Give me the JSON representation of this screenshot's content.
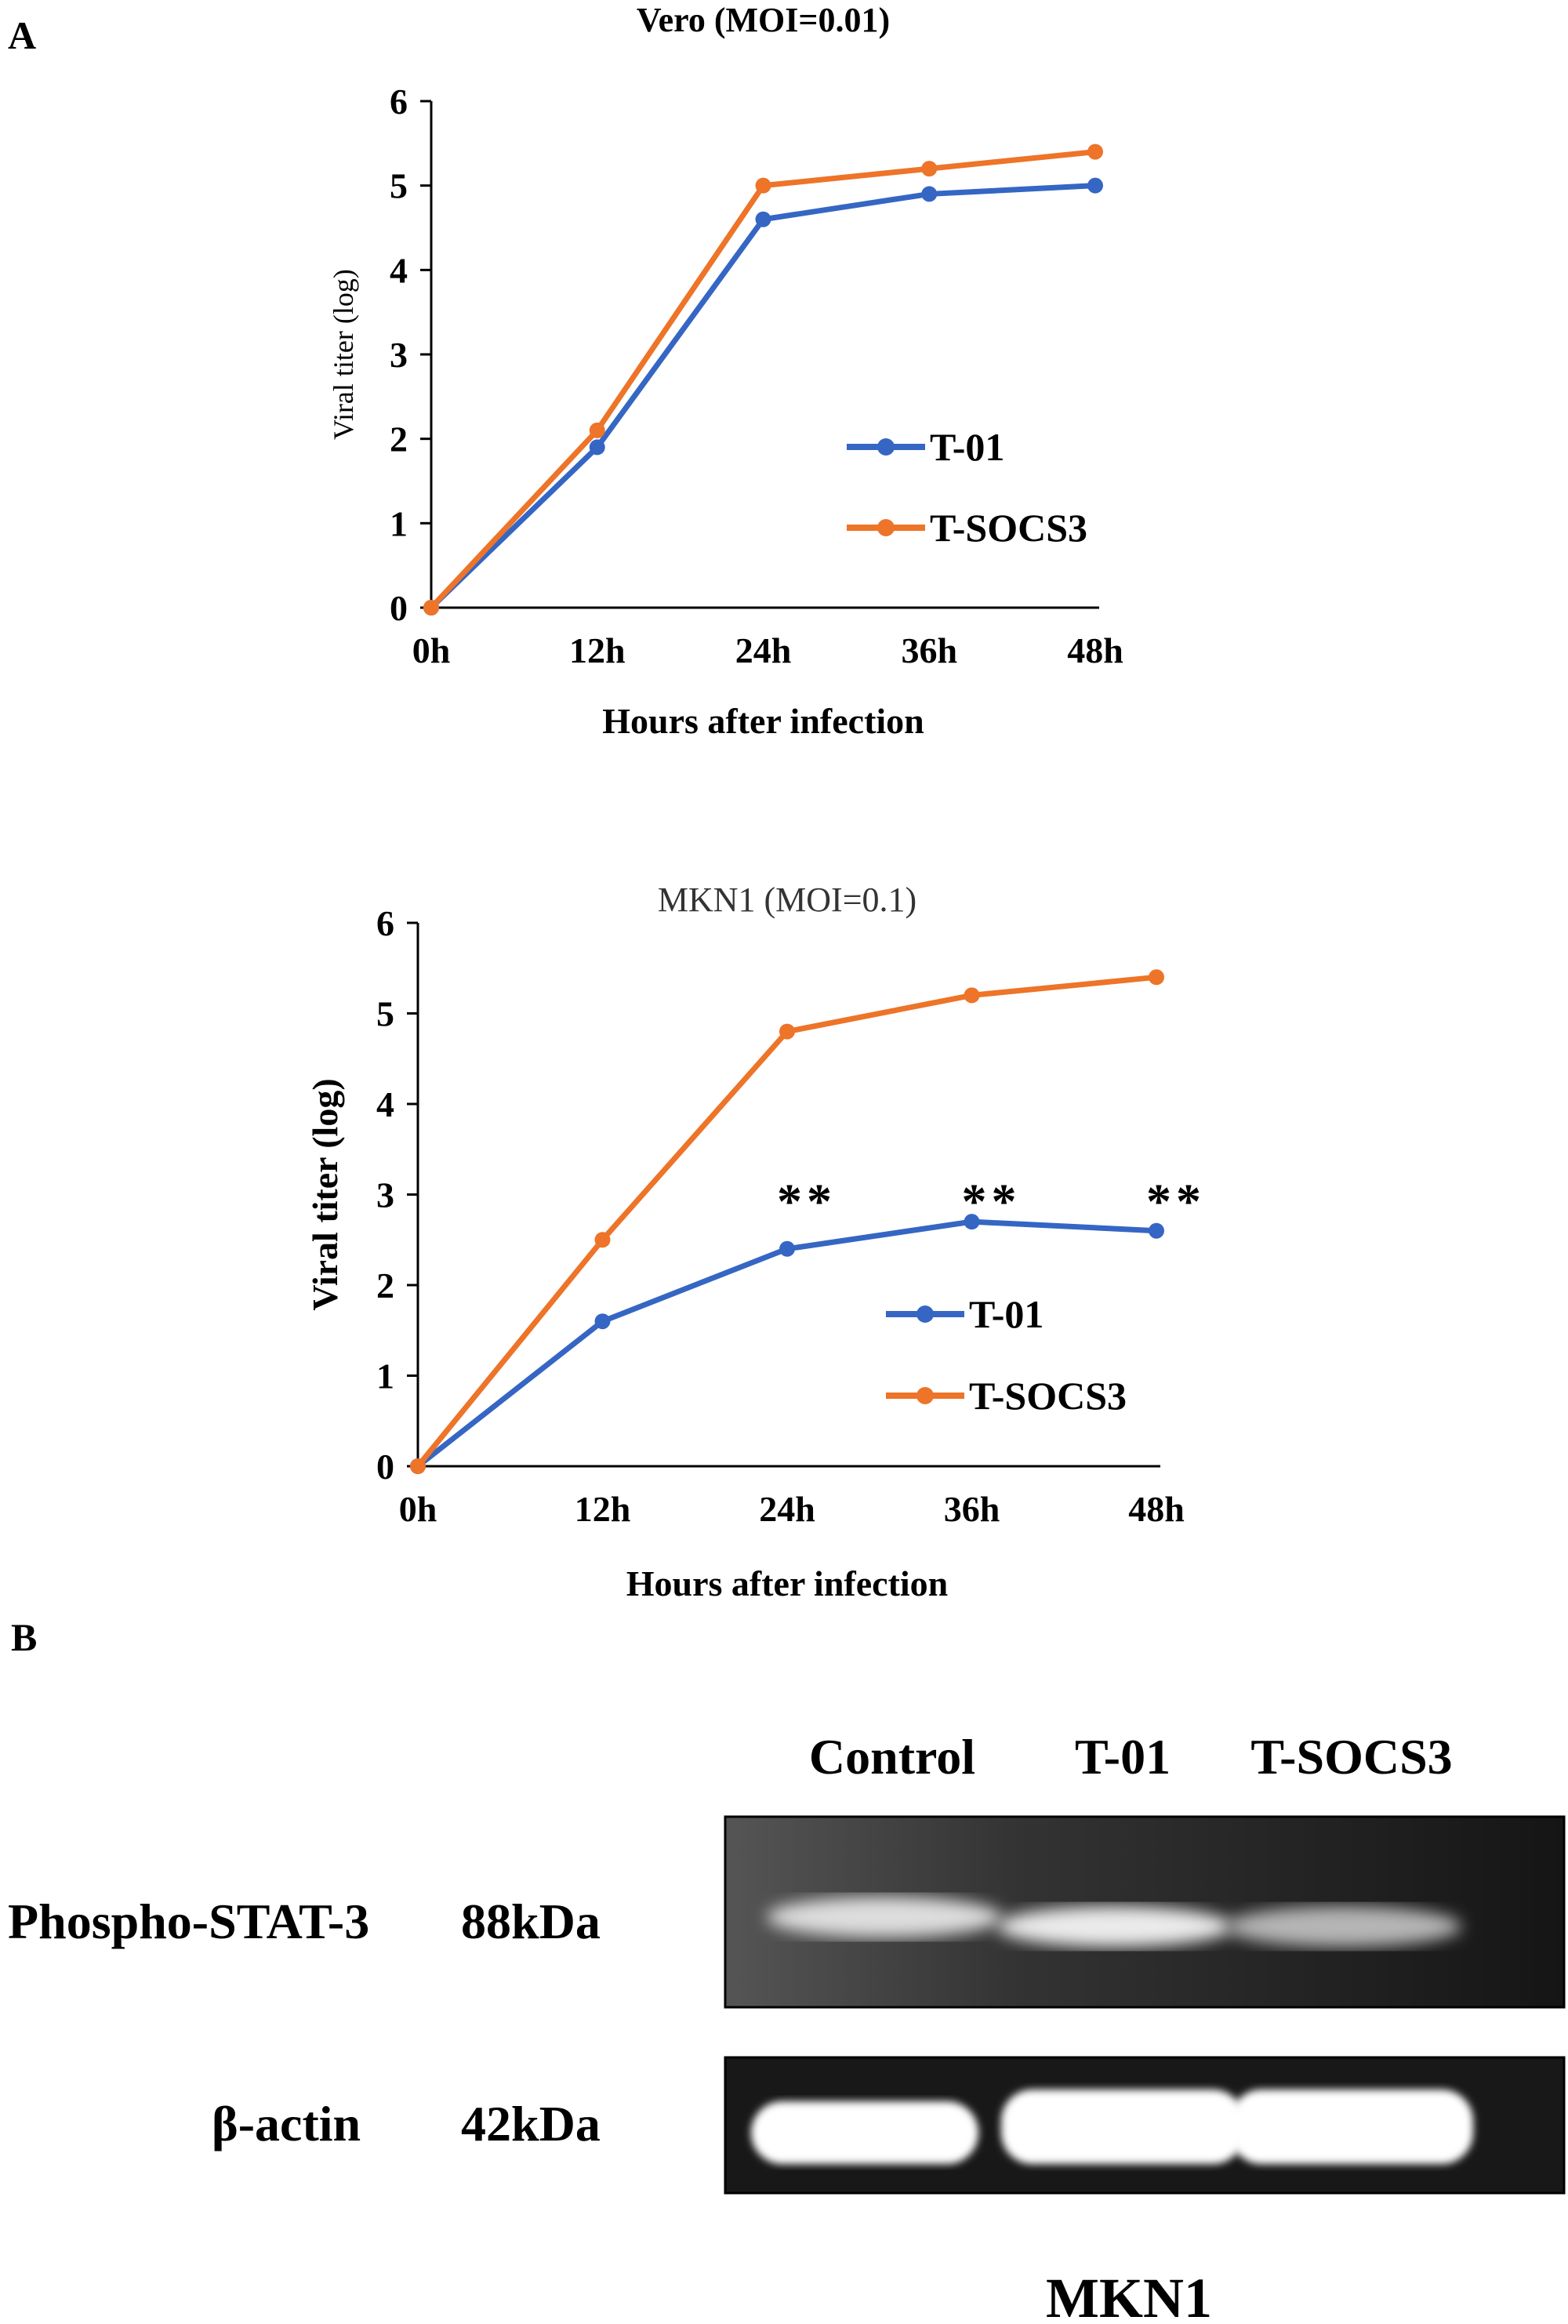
{
  "panel_labels": {
    "a": "A",
    "b": "B"
  },
  "colors": {
    "t01": "#3566c4",
    "tsocs3": "#ed7428"
  },
  "chart_data": [
    {
      "type": "line",
      "title": "Vero (MOI=0.01)",
      "xlabel": "Hours  after infection",
      "ylabel": "Viral  titer (log)",
      "categories": [
        "0h",
        "12h",
        "24h",
        "36h",
        "48h"
      ],
      "yticks": [
        "0",
        "1",
        "2",
        "3",
        "4",
        "5",
        "6"
      ],
      "ylim": [
        0,
        6
      ],
      "grid": false,
      "legend": "right",
      "series": [
        {
          "name": "T-01",
          "color": "#3566c4",
          "values": [
            0,
            1.9,
            4.6,
            4.9,
            5.0
          ]
        },
        {
          "name": "T-SOCS3",
          "color": "#ed7428",
          "values": [
            0,
            2.1,
            5.0,
            5.2,
            5.4
          ]
        }
      ],
      "annotations": []
    },
    {
      "type": "line",
      "title": "MKN1 (MOI=0.1)",
      "xlabel": "Hours  after infection",
      "ylabel": "Viral  titer (log)",
      "categories": [
        "0h",
        "12h",
        "24h",
        "36h",
        "48h"
      ],
      "yticks": [
        "0",
        "1",
        "2",
        "3",
        "4",
        "5",
        "6"
      ],
      "ylim": [
        0,
        6
      ],
      "grid": false,
      "legend": "right",
      "series": [
        {
          "name": "T-01",
          "color": "#3566c4",
          "values": [
            0,
            1.6,
            2.4,
            2.7,
            2.6
          ]
        },
        {
          "name": "T-SOCS3",
          "color": "#ed7428",
          "values": [
            0,
            2.5,
            4.8,
            5.2,
            5.4
          ]
        }
      ],
      "annotations": [
        {
          "x": "24h",
          "text": "**"
        },
        {
          "x": "36h",
          "text": "**"
        },
        {
          "x": "48h",
          "text": "**"
        }
      ]
    }
  ],
  "blot": {
    "lanes": [
      "Control",
      "T-01",
      "T-SOCS3"
    ],
    "rows": [
      {
        "protein": "Phospho-STAT-3",
        "size": "88kDa",
        "band_intensity": [
          0.75,
          0.85,
          0.45
        ]
      },
      {
        "protein": "β-actin",
        "size": "42kDa",
        "band_intensity": [
          1,
          1,
          1
        ]
      }
    ],
    "cell_line": "MKN1"
  }
}
